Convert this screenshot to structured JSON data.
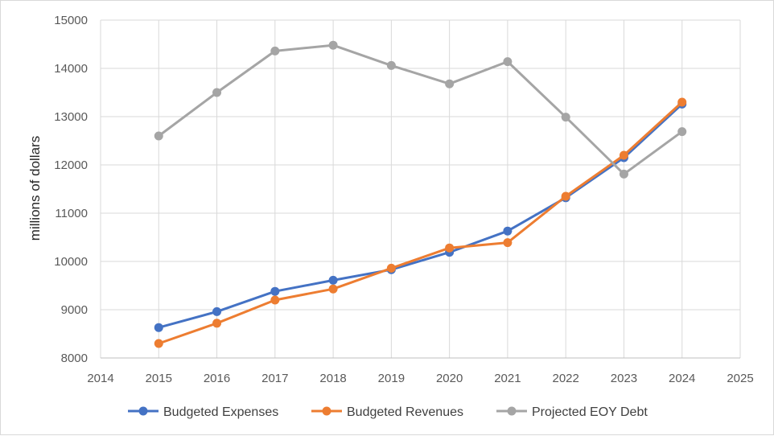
{
  "chart_data": {
    "type": "line",
    "title": "",
    "xlabel": "",
    "ylabel": "millions of dollars",
    "xlim": [
      2014,
      2025
    ],
    "ylim": [
      8000,
      15000
    ],
    "x_ticks": [
      2014,
      2015,
      2016,
      2017,
      2018,
      2019,
      2020,
      2021,
      2022,
      2023,
      2024,
      2025
    ],
    "y_ticks": [
      8000,
      9000,
      10000,
      11000,
      12000,
      13000,
      14000,
      15000
    ],
    "grid": true,
    "legend_position": "bottom",
    "x": [
      2015,
      2016,
      2017,
      2018,
      2019,
      2020,
      2021,
      2022,
      2023,
      2024
    ],
    "series": [
      {
        "name": "Budgeted Expenses",
        "color": "#4472C4",
        "values": [
          8630,
          8960,
          9380,
          9610,
          9830,
          10190,
          10630,
          11320,
          12150,
          13260
        ]
      },
      {
        "name": "Budgeted Revenues",
        "color": "#ED7D31",
        "values": [
          8300,
          8720,
          9200,
          9430,
          9860,
          10280,
          10390,
          11350,
          12200,
          13300
        ]
      },
      {
        "name": "Projected EOY Debt",
        "color": "#A5A5A5",
        "values": [
          12600,
          13500,
          14360,
          14480,
          14060,
          13680,
          14140,
          12990,
          11810,
          12690
        ]
      }
    ]
  }
}
